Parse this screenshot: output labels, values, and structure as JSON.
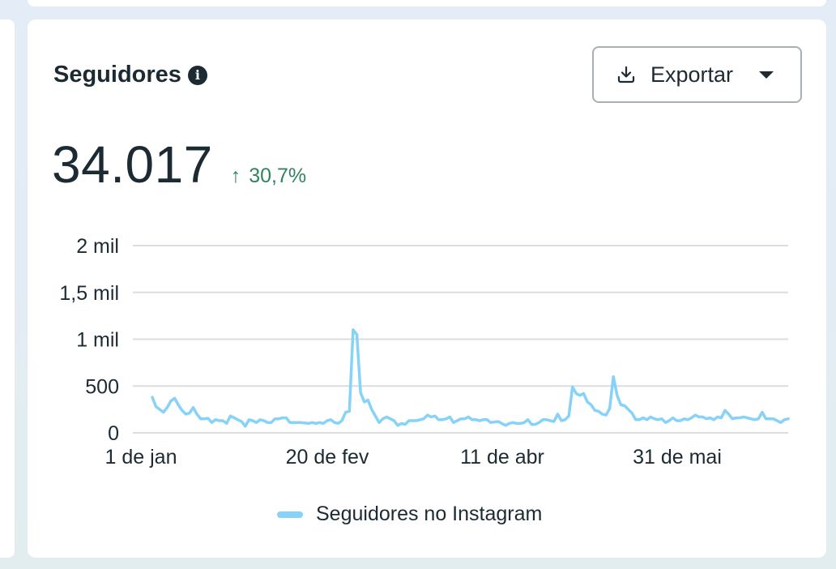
{
  "card": {
    "title": "Seguidores",
    "info_icon": "info-circle-icon",
    "export_label": "Exportar",
    "export_icon": "download-icon"
  },
  "metric": {
    "value": "34.017",
    "change_arrow": "↑",
    "change_text": "30,7%",
    "change_color": "#31845e"
  },
  "legend": {
    "label": "Seguidores no Instagram",
    "color": "#87d2f9"
  },
  "chart_data": {
    "type": "line",
    "title": "Seguidores",
    "xlabel": "",
    "ylabel": "",
    "ylim": [
      0,
      2000
    ],
    "y_ticks": [
      {
        "value": 0,
        "label": "0"
      },
      {
        "value": 500,
        "label": "500"
      },
      {
        "value": 1000,
        "label": "1 mil"
      },
      {
        "value": 1500,
        "label": "1,5 mil"
      },
      {
        "value": 2000,
        "label": "2 mil"
      }
    ],
    "x_ticks": [
      {
        "index": 0,
        "label": "1 de jan"
      },
      {
        "index": 50,
        "label": "20 de fev"
      },
      {
        "index": 100,
        "label": "11 de abr"
      },
      {
        "index": 150,
        "label": "31 de mai"
      }
    ],
    "grid": true,
    "legend_position": "bottom",
    "series": [
      {
        "name": "Seguidores no Instagram",
        "color": "#87d2f9",
        "values": [
          380,
          280,
          250,
          220,
          270,
          340,
          370,
          300,
          240,
          200,
          210,
          270,
          200,
          150,
          150,
          155,
          110,
          140,
          130,
          130,
          100,
          180,
          160,
          140,
          120,
          70,
          140,
          130,
          110,
          140,
          130,
          110,
          110,
          150,
          150,
          160,
          160,
          110,
          110,
          110,
          110,
          105,
          100,
          110,
          100,
          110,
          100,
          130,
          140,
          110,
          100,
          130,
          220,
          230,
          1100,
          1050,
          430,
          330,
          350,
          250,
          180,
          110,
          150,
          170,
          150,
          130,
          80,
          100,
          90,
          130,
          130,
          130,
          140,
          150,
          190,
          170,
          180,
          140,
          140,
          150,
          170,
          110,
          130,
          150,
          150,
          170,
          140,
          140,
          130,
          140,
          140,
          110,
          115,
          120,
          100,
          80,
          100,
          110,
          100,
          100,
          110,
          140,
          90,
          90,
          110,
          140,
          140,
          130,
          120,
          200,
          130,
          140,
          180,
          490,
          420,
          400,
          420,
          330,
          300,
          240,
          230,
          200,
          190,
          260,
          600,
          400,
          300,
          290,
          250,
          210,
          140,
          140,
          160,
          140,
          170,
          150,
          140,
          150,
          110,
          130,
          160,
          130,
          130,
          150,
          140,
          160,
          190,
          170,
          170,
          150,
          160,
          140,
          170,
          160,
          240,
          200,
          150,
          160,
          160,
          170,
          160,
          150,
          140,
          150,
          220,
          150,
          150,
          150,
          130,
          110,
          140,
          150
        ]
      }
    ]
  }
}
